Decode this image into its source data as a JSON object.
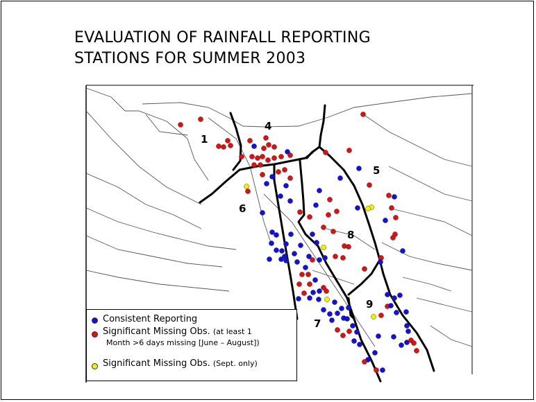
{
  "title": {
    "line1": "EVALUATION OF RAINFALL REPORTING",
    "line2": "STATIONS FOR SUMMER 2003"
  },
  "regions": [
    "1",
    "4",
    "5",
    "6",
    "7",
    "8",
    "9"
  ],
  "colors": {
    "consistent": "#1010e0",
    "missing": "#e01010",
    "sept": "#f0f000",
    "boundary": "#000000",
    "border": "#444444"
  },
  "legend": {
    "consistent": "Consistent Reporting",
    "missing_main": "Significant Missing Obs.",
    "missing_note1": "(at least 1",
    "missing_note2": "Month >6 days missing [June – August])",
    "sept_main": "Significant Missing Obs.",
    "sept_note": "(Sept. only)"
  }
}
